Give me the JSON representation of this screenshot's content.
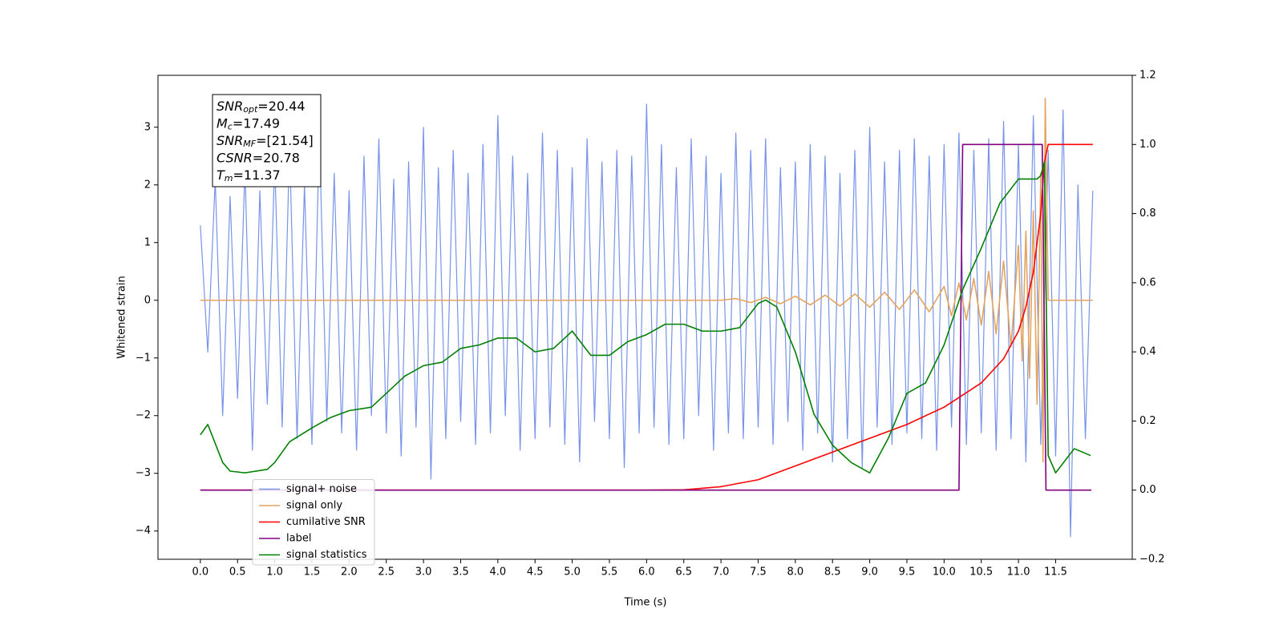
{
  "chart_data": {
    "type": "line",
    "xlabel": "Time (s)",
    "ylabel": "Whitened strain",
    "xlim": [
      -0.57,
      12.53
    ],
    "ylim": [
      -4.49,
      3.9
    ],
    "y2lim": [
      -0.2,
      1.2
    ],
    "xticks": [
      {
        "value": 0,
        "label": "0.0"
      },
      0.5,
      {
        "value": 1,
        "label": "1.0"
      },
      1.5,
      {
        "value": 2,
        "label": "2.0"
      },
      2.5,
      {
        "value": 3,
        "label": "3.0"
      },
      3.5,
      {
        "value": 4,
        "label": "4.0"
      },
      4.5,
      {
        "value": 5,
        "label": "5.0"
      },
      5.5,
      {
        "value": 6,
        "label": "6.0"
      },
      6.5,
      {
        "value": 7,
        "label": "7.0"
      },
      7.5,
      {
        "value": 8,
        "label": "8.0"
      },
      8.5,
      {
        "value": 9,
        "label": "9.0"
      },
      9.5,
      {
        "value": 10,
        "label": "10.0"
      },
      10.5,
      {
        "value": 11,
        "label": "11.0"
      },
      11.5
    ],
    "yticks": [
      {
        "value": -4,
        "label": "−4"
      },
      {
        "value": -3,
        "label": "−3"
      },
      {
        "value": -2,
        "label": "−2"
      },
      {
        "value": -1,
        "label": "−1"
      },
      0,
      1,
      2,
      3
    ],
    "y2ticks": [
      {
        "value": -0.2,
        "label": "−0.2"
      },
      {
        "value": 0,
        "label": "0.0"
      },
      0.2,
      0.4,
      0.6,
      0.8,
      {
        "value": 1,
        "label": "1.0"
      },
      1.2
    ],
    "legend": "lower left",
    "annotation": [
      {
        "text": "SNR",
        "sub": "opt",
        "value": "=20.44"
      },
      {
        "text": "M",
        "sub": "c",
        "value": "=17.49"
      },
      {
        "text": "SNR",
        "sub": "MF",
        "value": "=[21.54]"
      },
      {
        "text": "CSNR",
        "value": "=20.78"
      },
      {
        "text": "T",
        "sub": "m",
        "value": "=11.37"
      }
    ],
    "series": [
      {
        "name": "signal+ noise",
        "color": "#7893e8",
        "x": [
          0,
          0.1,
          0.2,
          0.3,
          0.4,
          0.5,
          0.6,
          0.7,
          0.8,
          0.9,
          1,
          1.1,
          1.2,
          1.3,
          1.4,
          1.5,
          1.6,
          1.7,
          1.8,
          1.9,
          2,
          2.1,
          2.2,
          2.3,
          2.4,
          2.5,
          2.6,
          2.7,
          2.8,
          2.9,
          3,
          3.1,
          3.2,
          3.3,
          3.4,
          3.5,
          3.6,
          3.7,
          3.8,
          3.9,
          4,
          4.1,
          4.2,
          4.3,
          4.4,
          4.5,
          4.6,
          4.7,
          4.8,
          4.9,
          5,
          5.1,
          5.2,
          5.3,
          5.4,
          5.5,
          5.6,
          5.7,
          5.8,
          5.9,
          6,
          6.1,
          6.2,
          6.3,
          6.4,
          6.5,
          6.6,
          6.7,
          6.8,
          6.9,
          7,
          7.1,
          7.2,
          7.3,
          7.4,
          7.5,
          7.6,
          7.7,
          7.8,
          7.9,
          8,
          8.1,
          8.2,
          8.3,
          8.4,
          8.5,
          8.6,
          8.7,
          8.8,
          8.9,
          9,
          9.1,
          9.2,
          9.3,
          9.4,
          9.5,
          9.6,
          9.7,
          9.8,
          9.9,
          10,
          10.1,
          10.2,
          10.3,
          10.4,
          10.5,
          10.6,
          10.7,
          10.8,
          10.9,
          11,
          11.1,
          11.2,
          11.3,
          11.4,
          11.5,
          11.6,
          11.7,
          11.8,
          11.9,
          12
        ],
        "values": [
          1.3,
          -0.9,
          2.1,
          -2.0,
          1.8,
          -1.7,
          2.3,
          -2.6,
          1.9,
          -1.8,
          2.4,
          -2.2,
          2.7,
          -2.4,
          2.0,
          -2.5,
          2.9,
          -2.1,
          2.2,
          -2.3,
          1.9,
          -2.6,
          2.5,
          -2.0,
          2.8,
          -2.3,
          2.1,
          -2.7,
          2.4,
          -2.2,
          3.0,
          -3.1,
          2.3,
          -2.4,
          2.6,
          -2.1,
          2.2,
          -2.5,
          2.7,
          -2.3,
          3.2,
          -2.0,
          2.5,
          -2.6,
          2.2,
          -2.4,
          2.9,
          -2.2,
          2.6,
          -2.5,
          2.3,
          -2.8,
          2.8,
          -2.1,
          2.4,
          -2.4,
          2.6,
          -2.9,
          2.5,
          -2.3,
          3.4,
          -2.2,
          2.7,
          -2.5,
          2.3,
          -2.4,
          2.8,
          -2.0,
          2.5,
          -2.6,
          2.2,
          -2.3,
          2.9,
          -2.4,
          2.6,
          -2.2,
          2.8,
          -2.5,
          2.3,
          -2.1,
          2.4,
          -2.6,
          2.7,
          -2.3,
          2.5,
          -2.8,
          2.2,
          -2.4,
          2.6,
          -2.9,
          3.0,
          -2.2,
          2.4,
          -2.5,
          2.6,
          -2.3,
          2.8,
          -2.4,
          2.5,
          -2.6,
          2.7,
          -2.2,
          2.9,
          -2.5,
          2.6,
          -2.3,
          2.8,
          -2.6,
          3.1,
          -2.4,
          2.7,
          -2.8,
          3.2,
          -2.5,
          2.6,
          -2.7,
          3.3,
          -4.1,
          2.0,
          -2.4,
          1.9
        ]
      },
      {
        "name": "signal only",
        "color": "#e3a45e",
        "x": [
          0,
          7.0,
          7.2,
          7.4,
          7.6,
          7.8,
          8.0,
          8.2,
          8.4,
          8.6,
          8.8,
          9.0,
          9.2,
          9.4,
          9.6,
          9.8,
          10.0,
          10.1,
          10.2,
          10.3,
          10.4,
          10.5,
          10.6,
          10.7,
          10.8,
          10.9,
          11.0,
          11.05,
          11.1,
          11.15,
          11.2,
          11.25,
          11.3,
          11.33,
          11.36,
          11.4,
          12.0
        ],
        "values": [
          0,
          0,
          0.03,
          -0.04,
          0.05,
          -0.06,
          0.07,
          -0.08,
          0.09,
          -0.1,
          0.11,
          -0.12,
          0.14,
          -0.16,
          0.18,
          -0.2,
          0.24,
          -0.27,
          0.3,
          -0.34,
          0.38,
          -0.43,
          0.5,
          -0.58,
          0.68,
          -0.8,
          0.95,
          -1.05,
          1.2,
          -1.35,
          1.55,
          -1.8,
          2.2,
          -2.8,
          3.5,
          0,
          0
        ]
      },
      {
        "name": "cumilative SNR",
        "color": "#ff0000",
        "axis": "y2",
        "x": [
          0,
          6.0,
          6.5,
          7.0,
          7.5,
          8.0,
          8.5,
          9.0,
          9.5,
          10.0,
          10.5,
          10.8,
          11.0,
          11.1,
          11.2,
          11.3,
          11.35,
          11.4,
          12.0
        ],
        "values": [
          0,
          0,
          0.001,
          0.01,
          0.03,
          0.07,
          0.11,
          0.15,
          0.19,
          0.24,
          0.31,
          0.38,
          0.46,
          0.53,
          0.63,
          0.8,
          0.95,
          1.0,
          1.0
        ]
      },
      {
        "name": "label",
        "color": "#800080",
        "axis": "y2",
        "x": [
          0,
          10.2,
          10.25,
          11.32,
          11.37,
          11.98
        ],
        "values": [
          0,
          0,
          1,
          1,
          0,
          0
        ]
      },
      {
        "name": "signal statistics",
        "color": "#008000",
        "axis": "y2",
        "x": [
          0,
          0.1,
          0.3,
          0.4,
          0.6,
          0.9,
          1.0,
          1.2,
          1.5,
          1.75,
          2.0,
          2.3,
          2.5,
          2.75,
          3.0,
          3.25,
          3.5,
          3.75,
          4.0,
          4.25,
          4.5,
          4.75,
          5.0,
          5.25,
          5.5,
          5.75,
          6.0,
          6.25,
          6.5,
          6.75,
          7.0,
          7.25,
          7.5,
          7.6,
          7.75,
          8.0,
          8.25,
          8.5,
          8.75,
          9.0,
          9.25,
          9.5,
          9.75,
          10.0,
          10.25,
          10.5,
          10.75,
          11.0,
          11.25,
          11.3,
          11.35,
          11.4,
          11.5,
          11.75,
          11.97
        ],
        "values": [
          0.16,
          0.19,
          0.08,
          0.055,
          0.05,
          0.06,
          0.08,
          0.14,
          0.18,
          0.21,
          0.23,
          0.24,
          0.28,
          0.33,
          0.36,
          0.37,
          0.41,
          0.42,
          0.44,
          0.44,
          0.4,
          0.41,
          0.46,
          0.39,
          0.39,
          0.43,
          0.45,
          0.48,
          0.48,
          0.46,
          0.46,
          0.47,
          0.54,
          0.55,
          0.53,
          0.4,
          0.22,
          0.13,
          0.08,
          0.05,
          0.15,
          0.28,
          0.31,
          0.42,
          0.58,
          0.7,
          0.83,
          0.9,
          0.9,
          0.91,
          0.95,
          0.1,
          0.05,
          0.12,
          0.1
        ]
      }
    ]
  }
}
